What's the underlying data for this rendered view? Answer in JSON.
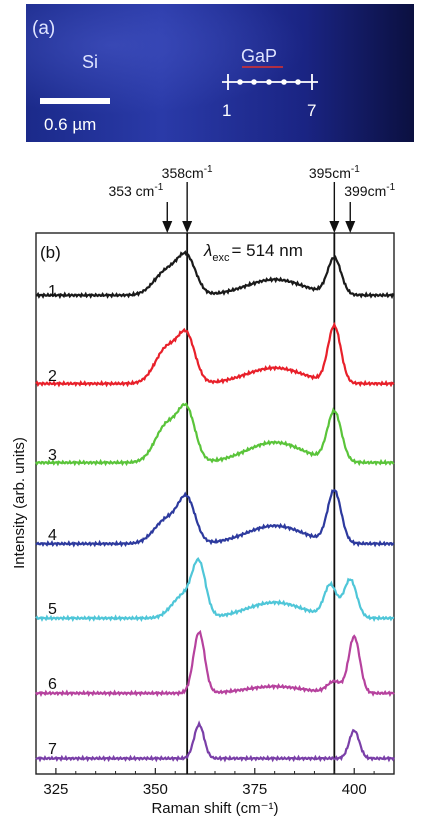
{
  "micrograph": {
    "panel_label": "(a)",
    "region_si": "Si",
    "region_gap": "GaP",
    "scale_bar_label": "0.6 µm",
    "point_start_label": "1",
    "point_end_label": "7",
    "colors": {
      "background": "#141f73",
      "gap_underline": "#e0302a"
    }
  },
  "chart_data": {
    "type": "line",
    "panel_label": "(b)",
    "xlabel": "Raman shift (cm⁻¹)",
    "ylabel": "Intensity (arb. units)",
    "xlim": [
      320,
      410
    ],
    "xticks": [
      325,
      350,
      375,
      400
    ],
    "excitation_label": {
      "prefix": "λ",
      "sub": "exc",
      "suffix": "= 514 nm"
    },
    "vertical_lines": [
      358,
      395
    ],
    "annotations": [
      {
        "text": "353 cm",
        "sup": "-1",
        "x": 353
      },
      {
        "text": "358cm",
        "sup": "-1",
        "x": 358
      },
      {
        "text": "395cm",
        "sup": "-1",
        "x": 395
      },
      {
        "text": "399cm",
        "sup": "-1",
        "x": 399
      }
    ],
    "series": [
      {
        "name": "1",
        "color": "#1a1a1a",
        "baseline": 3.0,
        "peaks": [
          [
            353,
            0.55,
            4.5
          ],
          [
            358,
            0.75,
            3.2
          ],
          [
            380,
            0.35,
            10
          ],
          [
            395,
            0.8,
            2.4
          ]
        ]
      },
      {
        "name": "2",
        "color": "#e8202a",
        "baseline": 1.5,
        "peaks": [
          [
            353,
            0.8,
            4.2
          ],
          [
            358,
            0.95,
            3.0
          ],
          [
            380,
            0.35,
            10
          ],
          [
            395,
            1.25,
            2.3
          ]
        ]
      },
      {
        "name": "3",
        "color": "#5ac43a",
        "baseline": 1.5,
        "peaks": [
          [
            353,
            0.85,
            4.2
          ],
          [
            358,
            1.05,
            3.0
          ],
          [
            380,
            0.45,
            10
          ],
          [
            395,
            1.1,
            2.5
          ]
        ]
      },
      {
        "name": "4",
        "color": "#2d3a9e",
        "baseline": 1.0,
        "peaks": [
          [
            353,
            0.55,
            4.5
          ],
          [
            358,
            0.9,
            3.0
          ],
          [
            380,
            0.4,
            10
          ],
          [
            395,
            1.15,
            2.4
          ]
        ]
      },
      {
        "name": "5",
        "color": "#4fc6d8",
        "baseline": 0.8,
        "peaks": [
          [
            357,
            0.5,
            4.0
          ],
          [
            361,
            1.1,
            2.4
          ],
          [
            380,
            0.35,
            10
          ],
          [
            394,
            0.7,
            2.2
          ],
          [
            399,
            0.85,
            2.3
          ]
        ]
      },
      {
        "name": "6",
        "color": "#b6429e",
        "baseline": 0.8,
        "peaks": [
          [
            361,
            1.35,
            2.0
          ],
          [
            380,
            0.15,
            10
          ],
          [
            395,
            0.25,
            2.5
          ],
          [
            400,
            1.25,
            2.0
          ]
        ]
      },
      {
        "name": "7",
        "color": "#7a3fa8",
        "baseline": 0.7,
        "peaks": [
          [
            361,
            0.75,
            1.8
          ],
          [
            400,
            0.62,
            1.8
          ]
        ]
      }
    ]
  }
}
